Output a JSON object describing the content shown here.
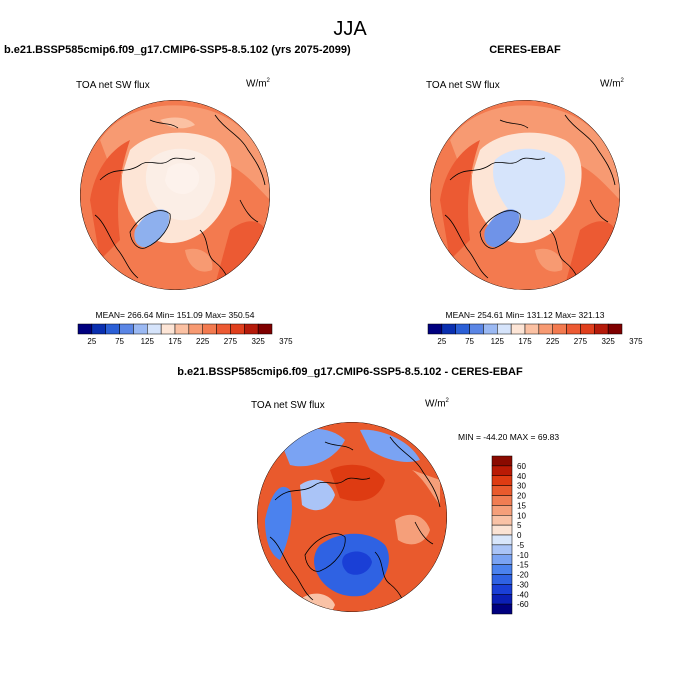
{
  "title": "JJA",
  "colors": {
    "abs_scale": [
      "#00007f",
      "#0a2fb0",
      "#2b5fd6",
      "#5b86e5",
      "#9bb9f3",
      "#d6e4fb",
      "#fde5d6",
      "#fbc1a3",
      "#f79a72",
      "#f37a4f",
      "#ec5a33",
      "#e03f1d",
      "#b51a0a",
      "#7f0000"
    ],
    "diff_scale": [
      "#00007f",
      "#0b1fb5",
      "#1a3fd6",
      "#2f62e3",
      "#4b82ee",
      "#7aa3f3",
      "#aac4f7",
      "#d8e6fb",
      "#fbe3d4",
      "#f9c2a6",
      "#f59f7a",
      "#f07d53",
      "#e95a2d",
      "#de3b12",
      "#b91a05",
      "#8a0a00"
    ]
  },
  "chart_data": [
    {
      "type": "heatmap",
      "panel": "left",
      "title": "b.e21.BSSP585cmip6.f09_g17.CMIP6-SSP5-8.5.102 (yrs 2075-2099)",
      "variable": "TOA net SW flux",
      "units": "W/m",
      "units_sup": "2",
      "stats_text": "MEAN= 266.64  Min= 151.09  Max= 350.54",
      "stats": {
        "mean": 266.64,
        "min": 151.09,
        "max": 350.54
      },
      "colorbar": {
        "orientation": "horizontal",
        "tick_values": [
          25,
          75,
          125,
          175,
          225,
          275,
          325,
          375
        ],
        "tick_labels": [
          "25",
          "75",
          "125",
          "175",
          "225",
          "275",
          "325",
          "375"
        ]
      }
    },
    {
      "type": "heatmap",
      "panel": "right",
      "title": "CERES-EBAF",
      "variable": "TOA net SW flux",
      "units": "W/m",
      "units_sup": "2",
      "stats_text": "MEAN= 254.61  Min= 131.12  Max= 321.13",
      "stats": {
        "mean": 254.61,
        "min": 131.12,
        "max": 321.13
      },
      "colorbar": {
        "orientation": "horizontal",
        "tick_values": [
          25,
          75,
          125,
          175,
          225,
          275,
          325,
          375
        ],
        "tick_labels": [
          "25",
          "75",
          "125",
          "175",
          "225",
          "275",
          "325",
          "375"
        ]
      }
    },
    {
      "type": "heatmap",
      "panel": "difference",
      "title": "b.e21.BSSP585cmip6.f09_g17.CMIP6-SSP5-8.5.102 - CERES-EBAF",
      "variable": "TOA net SW flux",
      "units": "W/m",
      "units_sup": "2",
      "stats_text": "MIN = -44.20 MAX =  69.83",
      "stats": {
        "min": -44.2,
        "max": 69.83
      },
      "colorbar": {
        "orientation": "vertical",
        "tick_values": [
          60,
          40,
          30,
          20,
          15,
          10,
          5,
          0,
          -5,
          -10,
          -15,
          -20,
          -30,
          -40,
          -60
        ],
        "tick_labels": [
          "60",
          "40",
          "30",
          "20",
          "15",
          "10",
          "5",
          "0",
          "-5",
          "-10",
          "-15",
          "-20",
          "-30",
          "-40",
          "-60"
        ]
      }
    }
  ]
}
